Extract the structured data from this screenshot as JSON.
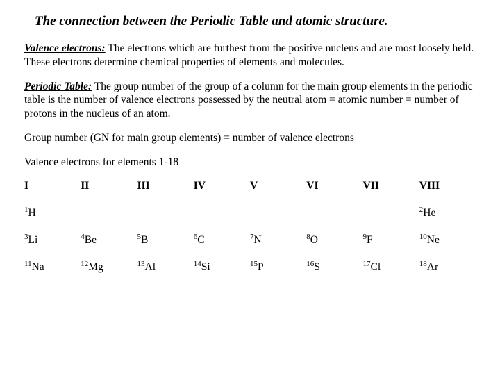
{
  "title": "The connection between the Periodic Table and atomic structure.",
  "para1": {
    "term": "Valence electrons:",
    "text": " The electrons which are furthest from the positive nucleus and are most loosely held.  These electrons determine chemical properties of elements and molecules."
  },
  "para2": {
    "term": "Periodic Table:",
    "text": " The group number of the group of a column for the main group elements in the periodic table is the number of valence electrons possessed by the neutral atom = atomic number = number of protons in the nucleus of an atom."
  },
  "para3": "Group number (GN for main group elements) = number of valence electrons",
  "para4": "Valence electrons for elements 1-18",
  "table": {
    "headers": [
      "I",
      "II",
      "III",
      "IV",
      "V",
      "VI",
      "VII",
      "VIII"
    ],
    "H": {
      "num": "1",
      "sym": "H"
    },
    "He": {
      "num": "2",
      "sym": "He"
    },
    "row3": [
      {
        "num": "3",
        "sym": "Li"
      },
      {
        "num": "4",
        "sym": "Be"
      },
      {
        "num": "5",
        "sym": "B"
      },
      {
        "num": "6",
        "sym": "C"
      },
      {
        "num": "7",
        "sym": "N"
      },
      {
        "num": "8",
        "sym": "O"
      },
      {
        "num": "9",
        "sym": "F"
      },
      {
        "num": "10",
        "sym": "Ne"
      }
    ],
    "row4": [
      {
        "num": "11",
        "sym": "Na"
      },
      {
        "num": "12",
        "sym": "Mg"
      },
      {
        "num": "13",
        "sym": "Al"
      },
      {
        "num": "14",
        "sym": "Si"
      },
      {
        "num": "15",
        "sym": "P"
      },
      {
        "num": "16",
        "sym": "S"
      },
      {
        "num": "17",
        "sym": "Cl"
      },
      {
        "num": "18",
        "sym": "Ar"
      }
    ]
  }
}
